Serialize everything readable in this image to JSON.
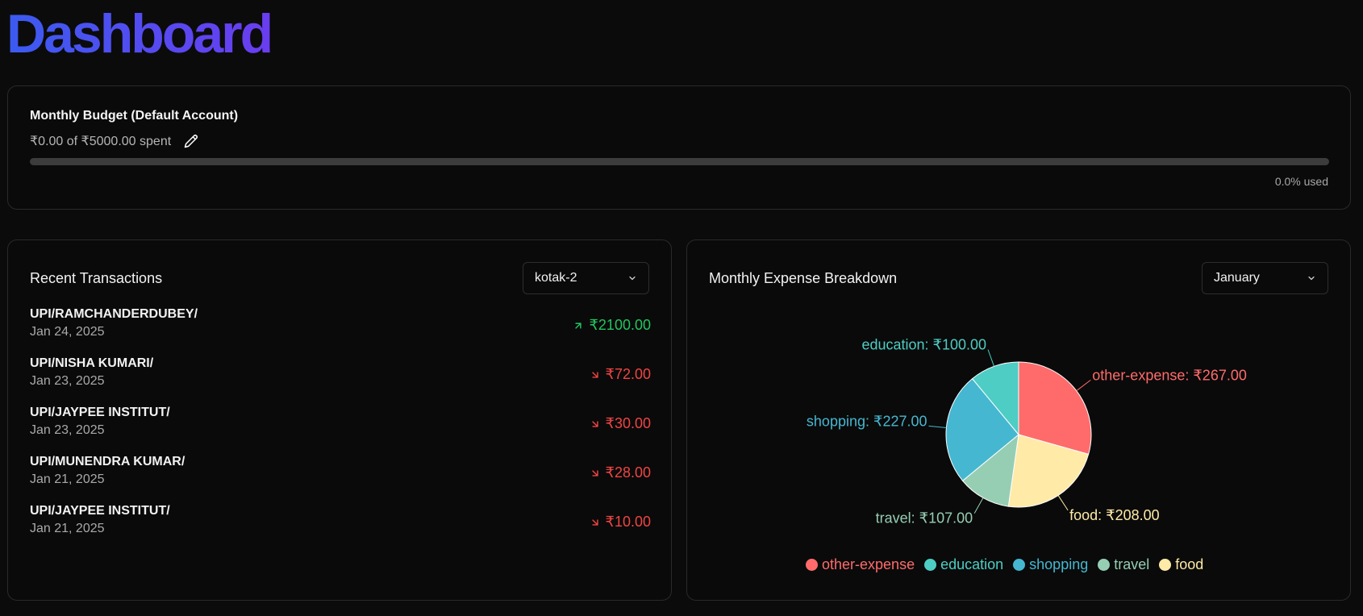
{
  "page": {
    "title": "Dashboard"
  },
  "budget": {
    "title": "Monthly Budget (Default Account)",
    "spent_text": "₹0.00 of ₹5000.00 spent",
    "used_text": "0.0% used",
    "used_fraction": 0.0,
    "edit_icon": "pencil-icon"
  },
  "transactions": {
    "title": "Recent Transactions",
    "account_select": {
      "value": "kotak-2"
    },
    "items": [
      {
        "name": "UPI/RAMCHANDERDUBEY/",
        "date": "Jan 24, 2025",
        "amount": "₹2100.00",
        "direction": "income",
        "color": "#22c55e"
      },
      {
        "name": "UPI/NISHA KUMARI/",
        "date": "Jan 23, 2025",
        "amount": "₹72.00",
        "direction": "expense",
        "color": "#ef4444"
      },
      {
        "name": "UPI/JAYPEE INSTITUT/",
        "date": "Jan 23, 2025",
        "amount": "₹30.00",
        "direction": "expense",
        "color": "#ef4444"
      },
      {
        "name": "UPI/MUNENDRA KUMAR/",
        "date": "Jan 21, 2025",
        "amount": "₹28.00",
        "direction": "expense",
        "color": "#ef4444"
      },
      {
        "name": "UPI/JAYPEE INSTITUT/",
        "date": "Jan 21, 2025",
        "amount": "₹10.00",
        "direction": "expense",
        "color": "#ef4444"
      }
    ]
  },
  "expense": {
    "title": "Monthly Expense Breakdown",
    "month_select": {
      "value": "January"
    }
  },
  "chart_data": {
    "type": "pie",
    "title": "",
    "slices": [
      {
        "name": "other-expense",
        "value": 267.0,
        "label": "other-expense: ₹267.00",
        "color": "#ff6b6b"
      },
      {
        "name": "food",
        "value": 208.0,
        "label": "food: ₹208.00",
        "color": "#ffeaa7"
      },
      {
        "name": "travel",
        "value": 107.0,
        "label": "travel: ₹107.00",
        "color": "#96ceb4"
      },
      {
        "name": "shopping",
        "value": 227.0,
        "label": "shopping: ₹227.00",
        "color": "#45b7d1"
      },
      {
        "name": "education",
        "value": 100.0,
        "label": "education: ₹100.00",
        "color": "#4ecdc4"
      }
    ],
    "legend": [
      "other-expense",
      "education",
      "shopping",
      "travel",
      "food"
    ],
    "legend_placement": "bottom"
  }
}
